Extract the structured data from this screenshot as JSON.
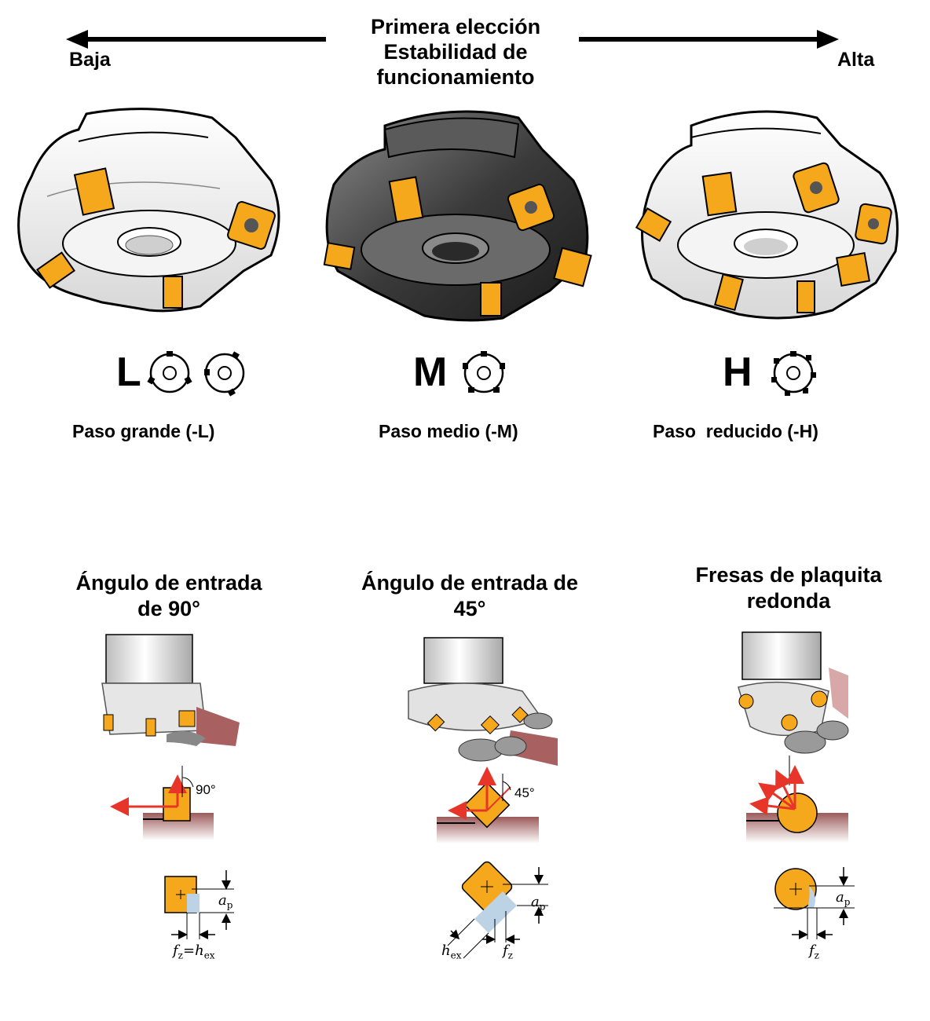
{
  "header": {
    "title_lines": [
      "Primera elección",
      "Estabilidad de",
      "funcionamiento"
    ],
    "left_label": "Baja",
    "right_label": "Alta"
  },
  "pitches": [
    {
      "letter": "L",
      "caption": "Paso grande (-L)",
      "pockets": 3
    },
    {
      "letter": "M",
      "caption": "Paso medio (-M)",
      "pockets": 5
    },
    {
      "letter": "H",
      "caption": "Paso  reducido (-H)",
      "pockets": 7
    }
  ],
  "sections": [
    {
      "title_lines": [
        "Ángulo de entrada",
        "de 90°"
      ],
      "angle": "90°",
      "fz": "f",
      "fz_sub": "z",
      "eq": "=",
      "hex": "h",
      "hex_sub": "ex",
      "ap": "a",
      "ap_sub": "p"
    },
    {
      "title_lines": [
        "Ángulo de entrada de",
        "45°"
      ],
      "angle": "45°",
      "fz": "f",
      "fz_sub": "z",
      "hex": "h",
      "hex_sub": "ex",
      "ap": "a",
      "ap_sub": "p"
    },
    {
      "title_lines": [
        "Fresas de plaquita",
        "redonda"
      ],
      "fz": "f",
      "fz_sub": "z",
      "ap": "a",
      "ap_sub": "p"
    }
  ],
  "colors": {
    "insert": "#f5a81c",
    "insert_dark": "#c98200",
    "arrow_red": "#e8352a",
    "workpiece": "#b07070",
    "cutter_light": "#f0f0f0",
    "cutter_dark": "#3a3a3a"
  }
}
